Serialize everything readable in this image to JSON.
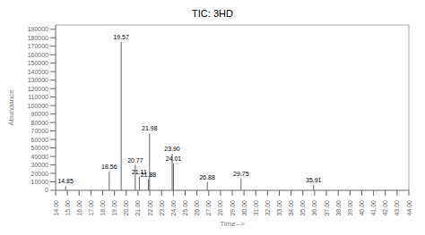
{
  "chart_data": {
    "type": "stem",
    "title": "TIC: 3HD",
    "x_label": "Time-->",
    "y_label": "Abundance",
    "x": [
      14.85,
      18.56,
      19.57,
      20.77,
      21.11,
      21.88,
      21.98,
      23.9,
      24.01,
      26.88,
      29.75,
      35.91
    ],
    "values": [
      5000,
      22000,
      175000,
      30000,
      16000,
      13000,
      67000,
      43000,
      32000,
      10000,
      14000,
      6000
    ],
    "annotations": [
      "14.85",
      "18.56",
      "19.57",
      "20.77",
      "21.11",
      "21.88",
      "21.98",
      "23.90",
      "24.01",
      "26.88",
      "29.75",
      "35.91"
    ],
    "color": "#666666",
    "xlim": [
      14.0,
      44.0
    ],
    "ylim": [
      0,
      195000
    ],
    "xticks": [
      {
        "value": 14,
        "label": "14.00"
      },
      {
        "value": 15,
        "label": "15.00"
      },
      {
        "value": 16,
        "label": "16.00"
      },
      {
        "value": 17,
        "label": "17.00"
      },
      {
        "value": 18,
        "label": "18.00"
      },
      {
        "value": 19,
        "label": "19.00"
      },
      {
        "value": 20,
        "label": "20.00"
      },
      {
        "value": 21,
        "label": "21.00"
      },
      {
        "value": 22,
        "label": "22.00"
      },
      {
        "value": 23,
        "label": "23.00"
      },
      {
        "value": 24,
        "label": "24.00"
      },
      {
        "value": 25,
        "label": "25.00"
      },
      {
        "value": 26,
        "label": "26.00"
      },
      {
        "value": 27,
        "label": "27.00"
      },
      {
        "value": 28,
        "label": "28.00"
      },
      {
        "value": 29,
        "label": "29.00"
      },
      {
        "value": 30,
        "label": "30.00"
      },
      {
        "value": 31,
        "label": "31.00"
      },
      {
        "value": 32,
        "label": "32.00"
      },
      {
        "value": 33,
        "label": "33.00"
      },
      {
        "value": 34,
        "label": "34.00"
      },
      {
        "value": 35,
        "label": "35.00"
      },
      {
        "value": 36,
        "label": "36.00"
      },
      {
        "value": 37,
        "label": "37.00"
      },
      {
        "value": 38,
        "label": "38.00"
      },
      {
        "value": 39,
        "label": "39.00"
      },
      {
        "value": 40,
        "label": "40.00"
      },
      {
        "value": 41,
        "label": "41.00"
      },
      {
        "value": 42,
        "label": "42.00"
      },
      {
        "value": 43,
        "label": "43.00"
      },
      {
        "value": 44,
        "label": "44.00"
      }
    ],
    "yticks": [
      0,
      10000,
      20000,
      30000,
      40000,
      50000,
      60000,
      70000,
      80000,
      90000,
      100000,
      110000,
      120000,
      130000,
      140000,
      150000,
      160000,
      170000,
      180000,
      190000
    ],
    "grid": false
  }
}
